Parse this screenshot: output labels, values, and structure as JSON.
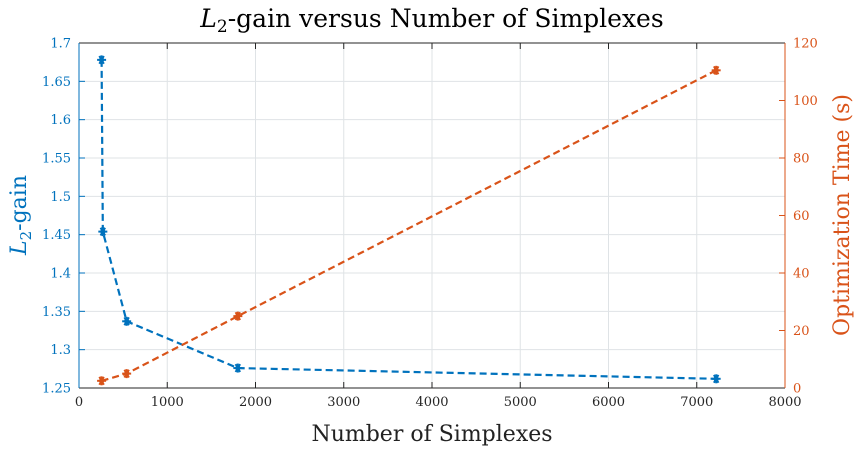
{
  "chart_data": {
    "type": "line",
    "title_math": "L",
    "title_math_sub": "2",
    "title_rest": "-gain versus Number of Simplexes",
    "xlabel": "Number of Simplexes",
    "ylabel_left_math": "L",
    "ylabel_left_sub": "2",
    "ylabel_left_rest": "-gain",
    "ylabel_right": "Optimization Time (s)",
    "xlim": [
      0,
      8000
    ],
    "ylim_left": [
      1.25,
      1.7
    ],
    "ylim_right": [
      0,
      120
    ],
    "x_ticks": [
      "0",
      "1000",
      "2000",
      "3000",
      "4000",
      "5000",
      "6000",
      "7000",
      "8000"
    ],
    "y_left_ticks": [
      "1.25",
      "1.3",
      "1.35",
      "1.4",
      "1.45",
      "1.5",
      "1.55",
      "1.6",
      "1.65",
      "1.7"
    ],
    "y_right_ticks": [
      "0",
      "20",
      "40",
      "60",
      "80",
      "100",
      "120"
    ],
    "grid": true,
    "colors": {
      "left": "#0072BD",
      "right": "#D95319"
    },
    "series": [
      {
        "axis": "left",
        "x": [
          256,
          270,
          540,
          1800,
          7220
        ],
        "y": [
          1.678,
          1.454,
          1.337,
          1.276,
          1.262
        ]
      },
      {
        "axis": "right",
        "x": [
          256,
          540,
          1800,
          7220
        ],
        "y": [
          2.5,
          5.0,
          25.0,
          110.5
        ]
      }
    ]
  }
}
